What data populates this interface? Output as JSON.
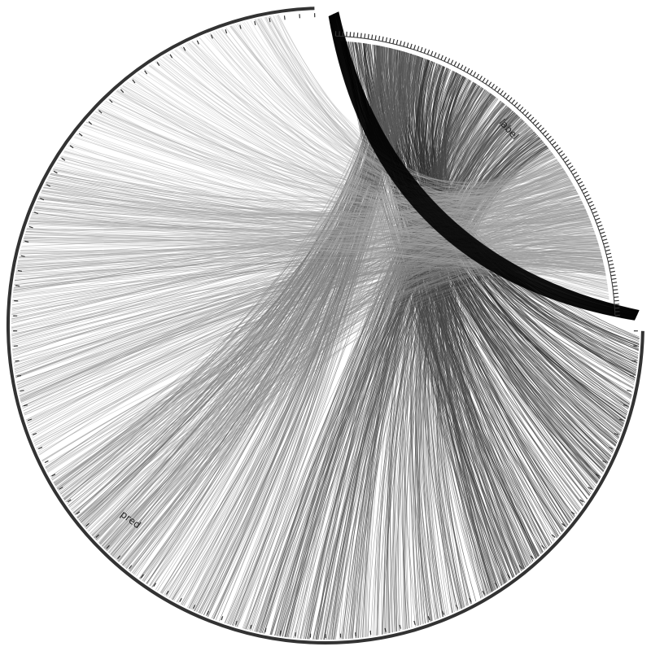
{
  "chart_data": {
    "type": "chord",
    "title": "",
    "segments": [
      {
        "name": "label",
        "start_deg": 2,
        "end_deg": 88,
        "ticks": 120
      },
      {
        "name": "pred",
        "start_deg": 91,
        "end_deg": 358,
        "ticks": 96
      }
    ],
    "flows": [
      {
        "label_range": [
          3,
          30
        ],
        "pred_range": [
          92,
          150
        ],
        "count": 420,
        "shade": "#2b2b2b",
        "opacity": 0.55
      },
      {
        "label_range": [
          30,
          52
        ],
        "pred_range": [
          140,
          195
        ],
        "count": 380,
        "shade": "#4a4a4a",
        "opacity": 0.5
      },
      {
        "label_range": [
          10,
          20
        ],
        "pred_range": [
          195,
          240
        ],
        "count": 260,
        "shade": "#5c5c5c",
        "opacity": 0.45
      },
      {
        "label_range": [
          52,
          80
        ],
        "pred_range": [
          220,
          300
        ],
        "count": 420,
        "shade": "#8a8a8a",
        "opacity": 0.45
      },
      {
        "label_range": [
          55,
          85
        ],
        "pred_range": [
          280,
          352
        ],
        "count": 320,
        "shade": "#a8a8a8",
        "opacity": 0.4
      }
    ],
    "grid": false,
    "legend": "none"
  },
  "colors": {
    "outer_ring": "#333333",
    "tick": "#333333",
    "self_arc": "#000000"
  }
}
